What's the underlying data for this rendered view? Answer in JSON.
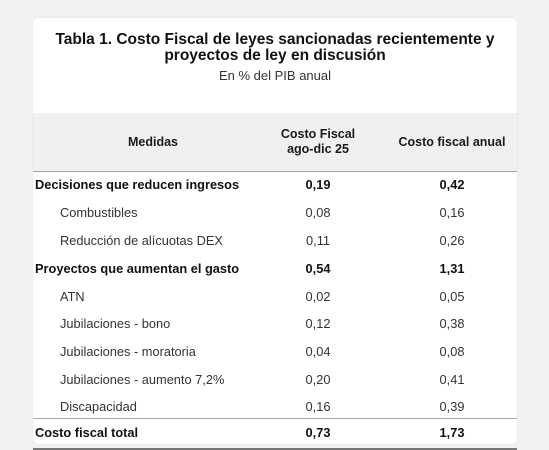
{
  "title": "Tabla 1. Costo Fiscal de leyes sancionadas recientemente y proyectos de ley en discusión",
  "subtitle": "En % del PIB anual",
  "headers": {
    "medidas": "Medidas",
    "col1_line1": "Costo Fiscal",
    "col1_line2": "ago-dic 25",
    "col2": "Costo fiscal anual"
  },
  "rows": [
    {
      "label": "Decisiones que reducen ingresos",
      "v1": "0,19",
      "v2": "0,42",
      "kind": "group"
    },
    {
      "label": "Combustibles",
      "v1": "0,08",
      "v2": "0,16",
      "kind": "item"
    },
    {
      "label": "Reducción de alícuotas DEX",
      "v1": "0,11",
      "v2": "0,26",
      "kind": "item"
    },
    {
      "label": "Proyectos que aumentan el gasto",
      "v1": "0,54",
      "v2": "1,31",
      "kind": "group"
    },
    {
      "label": "ATN",
      "v1": "0,02",
      "v2": "0,05",
      "kind": "item"
    },
    {
      "label": "Jubilaciones - bono",
      "v1": "0,12",
      "v2": "0,38",
      "kind": "item"
    },
    {
      "label": "Jubilaciones - moratoria",
      "v1": "0,04",
      "v2": "0,08",
      "kind": "item"
    },
    {
      "label": "Jubilaciones - aumento 7,2%",
      "v1": "0,20",
      "v2": "0,41",
      "kind": "item"
    },
    {
      "label": "Discapacidad",
      "v1": "0,16",
      "v2": "0,39",
      "kind": "item"
    },
    {
      "label": "Costo fiscal total",
      "v1": "0,73",
      "v2": "1,73",
      "kind": "total"
    }
  ]
}
